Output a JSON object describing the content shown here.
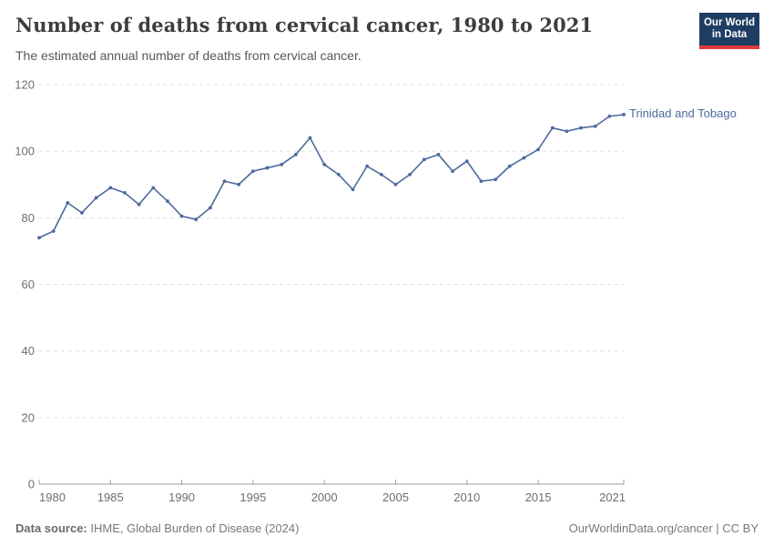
{
  "header": {
    "title": "Number of deaths from cervical cancer, 1980 to 2021",
    "subtitle": "The estimated annual number of deaths from cervical cancer.",
    "logo": {
      "line1": "Our World",
      "line2": "in Data"
    }
  },
  "chart_data": {
    "type": "line",
    "title": "Number of deaths from cervical cancer, 1980 to 2021",
    "subtitle": "The estimated annual number of deaths from cervical cancer.",
    "xlabel": "",
    "ylabel": "",
    "ylim": [
      0,
      120
    ],
    "yticks": [
      0,
      20,
      40,
      60,
      80,
      100,
      120
    ],
    "xticks": [
      1980,
      1985,
      1990,
      1995,
      2000,
      2005,
      2010,
      2015,
      2021
    ],
    "grid": "horizontal-dashed",
    "legend": "end-of-line-label",
    "series": [
      {
        "name": "Trinidad and Tobago",
        "color": "#4C6A9C",
        "x": [
          1980,
          1981,
          1982,
          1983,
          1984,
          1985,
          1986,
          1987,
          1988,
          1989,
          1990,
          1991,
          1992,
          1993,
          1994,
          1995,
          1996,
          1997,
          1998,
          1999,
          2000,
          2001,
          2002,
          2003,
          2004,
          2005,
          2006,
          2007,
          2008,
          2009,
          2010,
          2011,
          2012,
          2013,
          2014,
          2015,
          2016,
          2017,
          2018,
          2019,
          2020,
          2021
        ],
        "values": [
          74,
          76,
          84.5,
          81.5,
          86,
          89,
          87.5,
          84,
          89,
          85,
          80.5,
          79.5,
          83,
          91,
          90,
          94,
          95,
          96,
          99,
          104,
          96,
          93,
          88.5,
          95.5,
          93,
          90,
          93,
          97.5,
          99,
          94,
          97,
          91,
          91.5,
          95.5,
          98,
          100.5,
          107,
          106,
          107,
          107.5,
          110.5,
          111
        ]
      }
    ]
  },
  "footer": {
    "source_label": "Data source:",
    "source_text": " IHME, Global Burden of Disease (2024)",
    "right_text": "OurWorldinData.org/cancer | CC BY"
  },
  "colors": {
    "line": "#4C6A9C",
    "grid": "#dddddd",
    "axis": "#9e9e9e",
    "tick_text": "#6e6e6e",
    "title_text": "#3d3d3d",
    "subtitle_text": "#575757",
    "footer_text": "#787878",
    "logo_bg": "#1d3d63",
    "logo_red": "#e0393e"
  }
}
